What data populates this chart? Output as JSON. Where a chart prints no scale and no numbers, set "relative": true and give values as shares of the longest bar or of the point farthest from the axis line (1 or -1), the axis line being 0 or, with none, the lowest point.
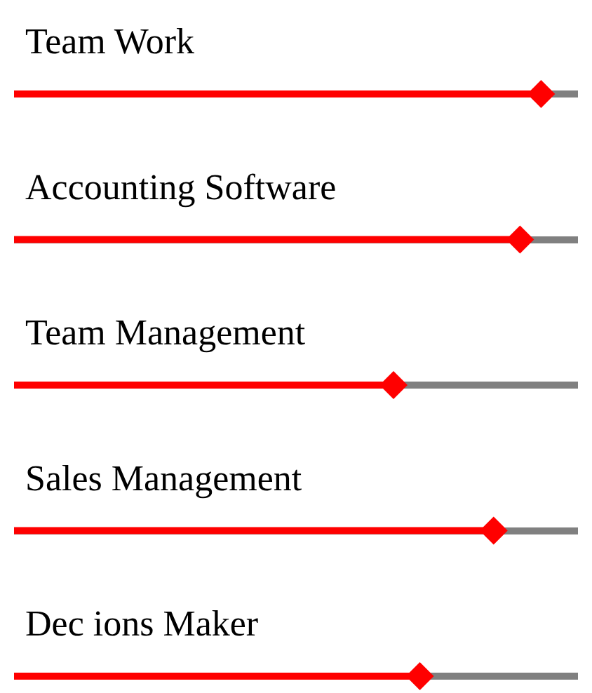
{
  "chart_data": {
    "type": "lollipop",
    "orientation": "horizontal",
    "relative": true,
    "grid": "y",
    "marker": "diamond",
    "color": "#ff0000",
    "categories": [
      "Team Work",
      "Accounting Software",
      "Team Management",
      "Sales Management",
      "Dec ions Maker"
    ],
    "values": [
      1,
      0.96,
      0.72,
      0.91,
      0.77
    ]
  }
}
